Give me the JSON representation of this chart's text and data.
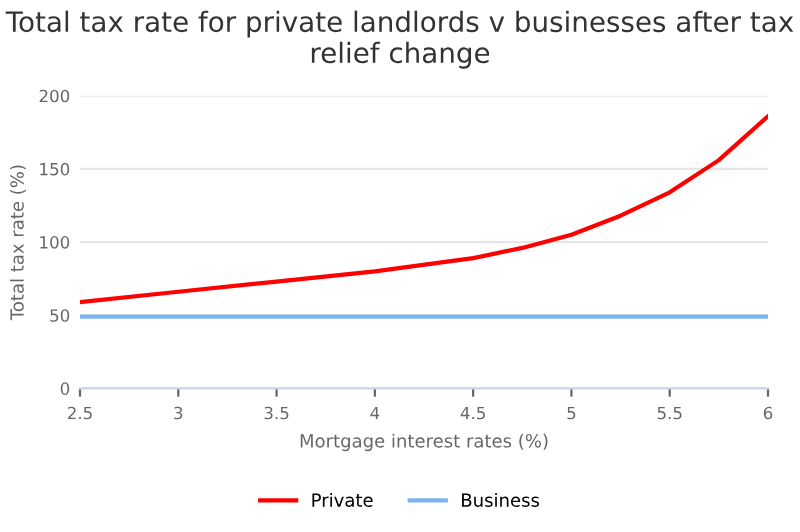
{
  "chart_data": {
    "type": "line",
    "title": "Total tax rate for private landlords v businesses after tax relief change",
    "xlabel": "Mortgage interest rates (%)",
    "ylabel": "Total tax rate (%)",
    "x": [
      2.5,
      3,
      3.5,
      4,
      4.5,
      4.75,
      5,
      5.25,
      5.5,
      5.75,
      6
    ],
    "series": [
      {
        "name": "Private",
        "color": "#ff0000",
        "values": [
          59,
          66,
          73,
          80,
          89,
          96,
          105,
          118,
          134,
          156,
          186
        ]
      },
      {
        "name": "Business",
        "color": "#7cb5ec",
        "values": [
          49,
          49,
          49,
          49,
          49,
          49,
          49,
          49,
          49,
          49,
          49
        ]
      }
    ],
    "xlim": [
      2.5,
      6
    ],
    "xticks": [
      2.5,
      3,
      3.5,
      4,
      4.5,
      5,
      5.5,
      6
    ],
    "ylim": [
      0,
      200
    ],
    "yticks": [
      0,
      50,
      100,
      150,
      200
    ],
    "grid": "y",
    "legend": "bottom",
    "marker": "none",
    "line_style": "solid"
  }
}
